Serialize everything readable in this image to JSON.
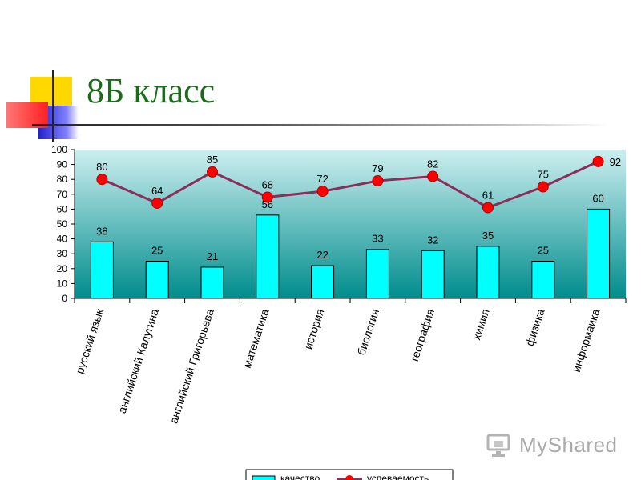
{
  "title": "8Б класс",
  "watermark": "MyShared",
  "colors": {
    "title": "#1a6b1a",
    "bar_fill": "#00ffff",
    "line": "#8b2e5a",
    "marker": "#ff0000",
    "plot_top": "#cdeff0",
    "plot_bottom": "#008c8c"
  },
  "chart_data": {
    "type": "bar",
    "title": "",
    "xlabel": "",
    "ylabel": "",
    "ylim": [
      0,
      100
    ],
    "yticks": [
      0,
      10,
      20,
      30,
      40,
      50,
      60,
      70,
      80,
      90,
      100
    ],
    "categories": [
      "русский язык",
      "английский Калугина",
      "английский Григорьева",
      "математика",
      "история",
      "биология",
      "география",
      "химия",
      "физика",
      "информаика"
    ],
    "series": [
      {
        "name": "качество",
        "type": "bar",
        "values": [
          38,
          25,
          21,
          56,
          22,
          33,
          32,
          35,
          25,
          60
        ]
      },
      {
        "name": "успеваемость",
        "type": "line",
        "values": [
          80,
          64,
          85,
          68,
          72,
          79,
          82,
          61,
          75,
          92
        ]
      }
    ],
    "grid": false,
    "legend": "bottom"
  }
}
